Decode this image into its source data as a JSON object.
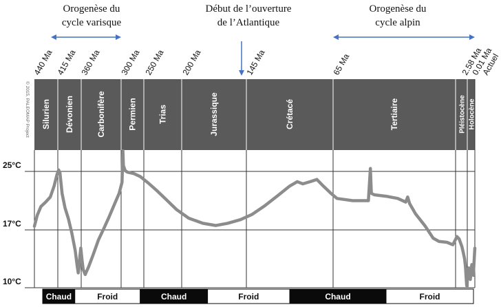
{
  "chart_data": {
    "type": "line",
    "title": "",
    "xlabel": "",
    "ylabel": "",
    "copyright": "© 2015, PALEOMAP Project",
    "events": [
      {
        "label_line1": "Orogenèse  du",
        "label_line2": "cycle varisque",
        "start_ma": 440,
        "end_ma": 300,
        "marker": "double-arrow"
      },
      {
        "label_line1": "Début de l’ouverture",
        "label_line2": "de l’Atlantique",
        "at_ma": 145,
        "marker": "down-arrow"
      },
      {
        "label_line1": "Orogenèse  du",
        "label_line2": "cycle alpin",
        "start_ma": 65,
        "end_ma": 0,
        "marker": "double-arrow"
      }
    ],
    "time_ticks": [
      "440 Ma",
      "415 Ma",
      "360 Ma",
      "300 Ma",
      "250 Ma",
      "200 Ma",
      "145 Ma",
      "65 Ma",
      "2.58 Ma",
      "0.01 Ma",
      "Actuel"
    ],
    "periods": [
      {
        "name": "Silurien",
        "start_ma": 440,
        "end_ma": 415
      },
      {
        "name": "Dévonien",
        "start_ma": 415,
        "end_ma": 360
      },
      {
        "name": "Carbonifère",
        "start_ma": 360,
        "end_ma": 300
      },
      {
        "name": "Permien",
        "start_ma": 300,
        "end_ma": 250
      },
      {
        "name": "Trias",
        "start_ma": 250,
        "end_ma": 200
      },
      {
        "name": "Jurassique",
        "start_ma": 200,
        "end_ma": 145
      },
      {
        "name": "Crétacé",
        "start_ma": 145,
        "end_ma": 65
      },
      {
        "name": "Tertiaire",
        "start_ma": 65,
        "end_ma": 2.58
      },
      {
        "name": "Pléistocène",
        "start_ma": 2.58,
        "end_ma": 0.01
      },
      {
        "name": "Holocène",
        "start_ma": 0.01,
        "end_ma": 0
      }
    ],
    "y_ticks": [
      {
        "value": 25,
        "label": "25°C"
      },
      {
        "value": 17,
        "label": "17°C"
      },
      {
        "value": 10,
        "label": "10°C"
      }
    ],
    "ylim": [
      9.5,
      28
    ],
    "climate_bands": [
      {
        "label": "Chaud",
        "start_ma": 440,
        "end_ma": 375,
        "style": "dark"
      },
      {
        "label": "Froid",
        "start_ma": 375,
        "end_ma": 258,
        "style": "light"
      },
      {
        "label": "Chaud",
        "start_ma": 258,
        "end_ma": 178,
        "style": "dark"
      },
      {
        "label": "Froid",
        "start_ma": 178,
        "end_ma": 105,
        "style": "light"
      },
      {
        "label": "Chaud",
        "start_ma": 105,
        "end_ma": 38,
        "style": "dark"
      },
      {
        "label": "Froid",
        "start_ma": 38,
        "end_ma": 0,
        "style": "light"
      }
    ],
    "series": [
      {
        "points": [
          [
            440,
            17.5
          ],
          [
            437,
            19
          ],
          [
            433,
            20.2
          ],
          [
            428,
            20.8
          ],
          [
            423,
            21.5
          ],
          [
            419,
            23
          ],
          [
            416,
            24.5
          ],
          [
            413,
            25.2
          ],
          [
            410,
            24.8
          ],
          [
            405,
            22
          ],
          [
            398,
            20
          ],
          [
            390,
            18.5
          ],
          [
            382,
            16.6
          ],
          [
            374,
            14.5
          ],
          [
            369,
            12.5
          ],
          [
            367,
            11.8
          ],
          [
            365,
            12.5
          ],
          [
            363,
            13.8
          ],
          [
            361,
            14.8
          ],
          [
            359,
            13.5
          ],
          [
            357,
            12.2
          ],
          [
            354,
            11.6
          ],
          [
            349,
            12.5
          ],
          [
            342,
            14
          ],
          [
            334,
            15.8
          ],
          [
            326,
            17.2
          ],
          [
            318,
            18.8
          ],
          [
            310,
            20.5
          ],
          [
            303,
            22
          ],
          [
            298,
            23.5
          ],
          [
            296,
            27.8
          ],
          [
            295,
            25.8
          ],
          [
            291,
            25.1
          ],
          [
            286,
            24.9
          ],
          [
            272,
            24.7
          ],
          [
            258,
            24.3
          ],
          [
            244,
            23.4
          ],
          [
            232,
            22.3
          ],
          [
            220,
            21.1
          ],
          [
            207,
            19.8
          ],
          [
            194,
            18.6
          ],
          [
            182,
            17.9
          ],
          [
            171,
            17.6
          ],
          [
            161,
            17.9
          ],
          [
            150,
            18.4
          ],
          [
            140,
            19.1
          ],
          [
            128,
            20.3
          ],
          [
            116,
            21.7
          ],
          [
            105,
            23
          ],
          [
            98,
            23.6
          ],
          [
            93,
            23.3
          ],
          [
            86,
            23.6
          ],
          [
            80,
            23.9
          ],
          [
            74,
            23
          ],
          [
            67,
            22
          ],
          [
            63,
            21.3
          ],
          [
            55,
            21
          ],
          [
            47,
            21
          ],
          [
            46,
            25.4
          ],
          [
            45.5,
            22
          ],
          [
            44,
            21.8
          ],
          [
            38,
            21.6
          ],
          [
            32,
            21.3
          ],
          [
            28,
            20.8
          ],
          [
            27,
            21.5
          ],
          [
            26,
            20.6
          ],
          [
            23,
            19.2
          ],
          [
            18,
            17.5
          ],
          [
            14,
            16
          ],
          [
            11,
            15.6
          ],
          [
            7,
            15.5
          ],
          [
            4,
            15.2
          ],
          [
            2.7,
            15.8
          ],
          [
            2.3,
            16.2
          ],
          [
            1.8,
            15.9
          ],
          [
            1.2,
            15
          ],
          [
            0.9,
            14.3
          ],
          [
            0.6,
            13.5
          ],
          [
            0.4,
            12.5
          ],
          [
            0.3,
            11.6
          ],
          [
            0.2,
            10.8
          ],
          [
            0.15,
            10.3
          ],
          [
            0.12,
            10.6
          ],
          [
            0.1,
            10.2
          ],
          [
            0.08,
            11.2
          ],
          [
            0.06,
            10.1
          ],
          [
            0.05,
            11.5
          ],
          [
            0.035,
            10.2
          ],
          [
            0.025,
            12
          ],
          [
            0.015,
            10.6
          ],
          [
            0.01,
            11.8
          ],
          [
            0.008,
            12.4
          ],
          [
            0.006,
            11
          ],
          [
            0.004,
            12.8
          ],
          [
            0.002,
            11.5
          ],
          [
            0.001,
            13.2
          ],
          [
            0,
            14.8
          ]
        ],
        "color": "#8c8c8c"
      }
    ],
    "grid": true,
    "legend": "none"
  }
}
